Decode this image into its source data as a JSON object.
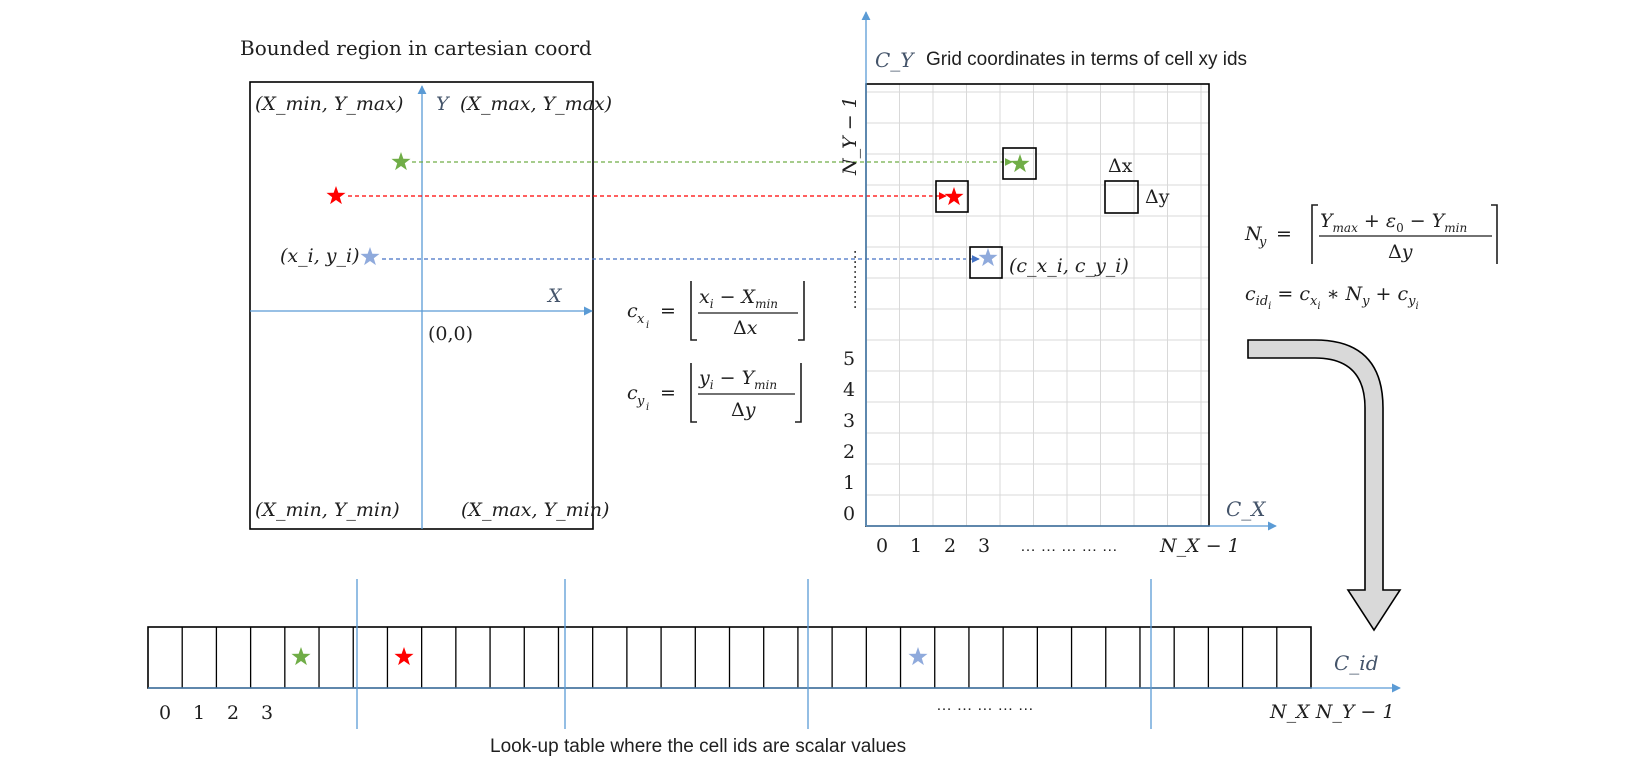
{
  "left_panel": {
    "title": "Bounded region in cartesian coord",
    "corner_top_left": "(X_min, Y_max)",
    "corner_top_right": "(X_max, Y_max)",
    "corner_bottom_left": "(X_min, Y_min)",
    "corner_bottom_right": "(X_max, Y_min)",
    "axis_x": "X",
    "axis_y": "Y",
    "origin": "(0,0)",
    "point_label": "(x_i, y_i)"
  },
  "formulas": {
    "cx": "c_x_i = ⌊(x_i − X_min) / Δx⌋",
    "cy": "c_y_i = ⌊(y_i − Y_min) / Δy⌋",
    "ny": "N_y = ⌈(Y_max + ε_0 − Y_min) / Δy⌉",
    "cid": "c_id_i = c_x_i * N_y + c_y_i"
  },
  "grid_panel": {
    "title": "Grid coordinates in terms of cell xy ids",
    "axis_y": "C_Y",
    "axis_x": "C_X",
    "y_max_label": "N_Y − 1",
    "x_max_label": "N_X − 1",
    "x_ticks": [
      "0",
      "1",
      "2",
      "3"
    ],
    "y_ticks": [
      "0",
      "1",
      "2",
      "3",
      "4",
      "5"
    ],
    "x_ellipsis": "… … … … …",
    "y_ellipsis": "…………",
    "legend_dx": "Δx",
    "legend_dy": "Δy",
    "cell_label": "(c_x_i, c_y_i)"
  },
  "lut": {
    "caption": "Look-up table where the cell ids are scalar values",
    "axis": "C_id",
    "ticks": [
      "0",
      "1",
      "2",
      "3"
    ],
    "ellipsis": "… … … … …",
    "end_label": "N_X N_Y − 1"
  },
  "colors": {
    "axis": "#5b9bd5",
    "green_star": "#70ad47",
    "red_star": "#ff0000",
    "blue_star": "#8faadc",
    "grid_line": "#d9d9d9",
    "arrow_fill": "#d9d9d9",
    "text_dark": "#1f1f1f",
    "axis_text": "#44546a"
  }
}
